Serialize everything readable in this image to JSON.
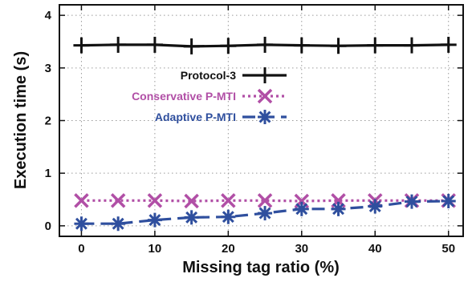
{
  "chart_data": {
    "type": "line",
    "xlabel": "Missing tag ratio (%)",
    "ylabel": "Execution time (s)",
    "xlim": [
      -3,
      52
    ],
    "ylim": [
      -0.2,
      4.2
    ],
    "x_ticks": [
      0,
      10,
      20,
      30,
      40,
      50
    ],
    "y_ticks": [
      0,
      1,
      2,
      3,
      4
    ],
    "grid": true,
    "legend_position": "middle-left",
    "x": [
      0,
      5,
      10,
      15,
      20,
      25,
      30,
      35,
      40,
      45,
      50
    ],
    "series": [
      {
        "name": "Protocol-3",
        "color": "#111111",
        "marker": "plus",
        "dash": "solid",
        "values": [
          3.43,
          3.44,
          3.44,
          3.41,
          3.42,
          3.44,
          3.43,
          3.42,
          3.43,
          3.43,
          3.44
        ]
      },
      {
        "name": "Conservative P-MTI",
        "color": "#b14fa6",
        "marker": "x",
        "dash": "dotted",
        "values": [
          0.48,
          0.48,
          0.48,
          0.47,
          0.48,
          0.48,
          0.47,
          0.48,
          0.48,
          0.48,
          0.48
        ]
      },
      {
        "name": "Adaptive P-MTI",
        "color": "#2f4f9e",
        "marker": "asterisk",
        "dash": "dashed",
        "values": [
          0.04,
          0.04,
          0.11,
          0.16,
          0.17,
          0.24,
          0.32,
          0.32,
          0.37,
          0.46,
          0.47
        ]
      }
    ]
  }
}
